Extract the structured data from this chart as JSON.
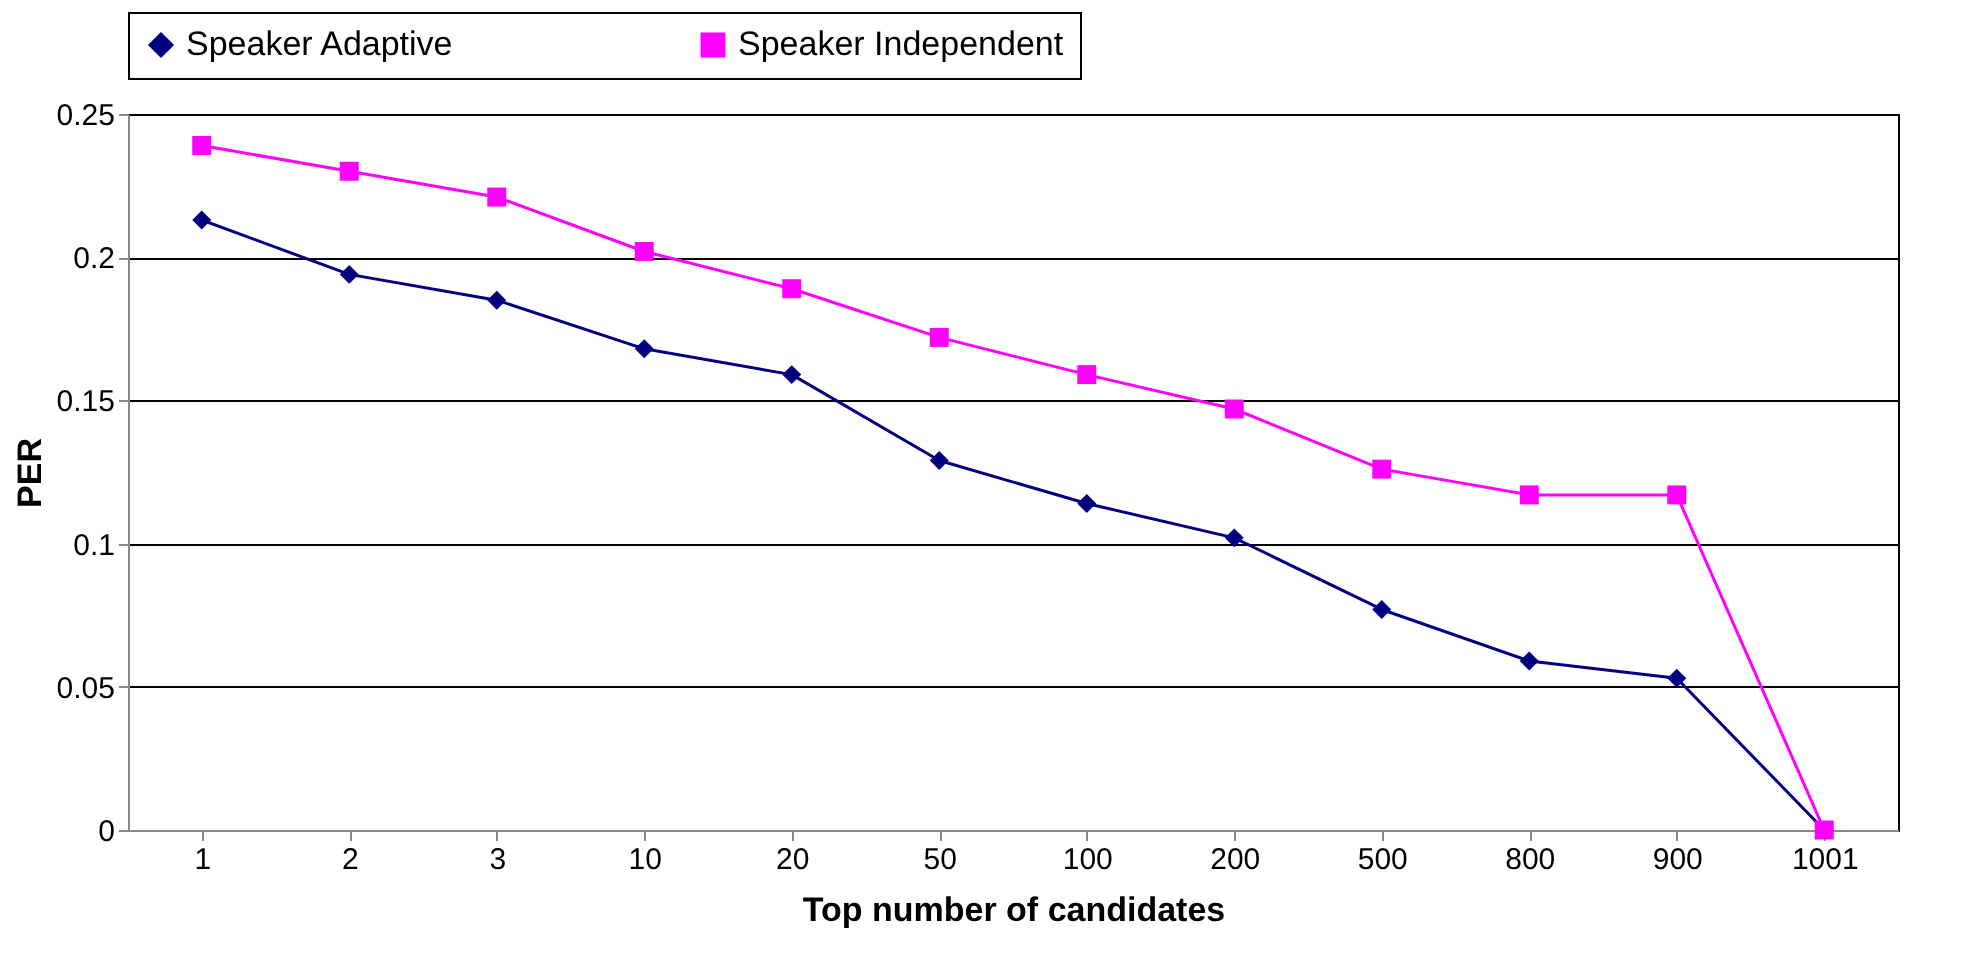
{
  "chart_data": {
    "type": "line",
    "xlabel": "Top number of candidates",
    "ylabel": "PER",
    "categories": [
      "1",
      "2",
      "3",
      "10",
      "20",
      "50",
      "100",
      "200",
      "500",
      "800",
      "900",
      "1001"
    ],
    "series": [
      {
        "name": "Speaker Adaptive",
        "color": "#000080",
        "marker": "diamond",
        "values": [
          0.213,
          0.194,
          0.185,
          0.168,
          0.159,
          0.129,
          0.114,
          0.102,
          0.077,
          0.059,
          0.053,
          0
        ]
      },
      {
        "name": "Speaker Independent",
        "color": "#ff00ff",
        "marker": "square",
        "values": [
          0.239,
          0.23,
          0.221,
          0.202,
          0.189,
          0.172,
          0.159,
          0.147,
          0.126,
          0.117,
          0.117,
          0
        ]
      }
    ],
    "ylim": [
      0,
      0.25
    ],
    "yticks": [
      0,
      0.05,
      0.1,
      0.15,
      0.2,
      0.25
    ],
    "grid": "y",
    "legend": "top"
  }
}
